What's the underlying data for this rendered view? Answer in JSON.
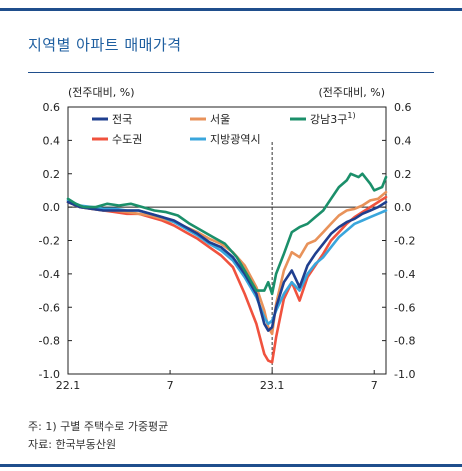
{
  "header": {
    "title": "지역별 아파트 매매가격"
  },
  "chart_data": {
    "type": "line",
    "left_unit": "(전주대비, %)",
    "right_unit": "(전주대비, %)",
    "ylim": [
      -1.0,
      0.6
    ],
    "y_ticks": [
      0.6,
      0.4,
      0.2,
      0.0,
      -0.2,
      -0.4,
      -0.6,
      -0.8,
      -1.0
    ],
    "y_tick_labels_left": [
      "0.6",
      "0.4",
      "0.2",
      "0.0",
      "-0.2",
      "-0.4",
      "-0.6",
      "-0.8",
      "-1.0"
    ],
    "y_tick_labels_right": [
      "0.6",
      "0.4",
      "0.2",
      "0.0",
      "-0.2",
      "-0.4",
      "-0.6",
      "-0.8",
      "-1.0"
    ],
    "x_ticks": [
      {
        "week": 0,
        "label": "22.1"
      },
      {
        "week": 26,
        "label": "7"
      },
      {
        "week": 52,
        "label": "23.1"
      },
      {
        "week": 78,
        "label": "7"
      }
    ],
    "x_range": [
      0,
      81
    ],
    "reference_line_week": 52,
    "zero_line": true,
    "legend_position": "top",
    "series": [
      {
        "name": "전국",
        "color": "#1f3f8f",
        "points": [
          [
            0,
            0.03
          ],
          [
            3,
            0.0
          ],
          [
            6,
            -0.01
          ],
          [
            9,
            -0.02
          ],
          [
            12,
            -0.02
          ],
          [
            15,
            -0.02
          ],
          [
            18,
            -0.02
          ],
          [
            21,
            -0.04
          ],
          [
            24,
            -0.06
          ],
          [
            27,
            -0.08
          ],
          [
            30,
            -0.12
          ],
          [
            33,
            -0.16
          ],
          [
            36,
            -0.21
          ],
          [
            39,
            -0.24
          ],
          [
            42,
            -0.3
          ],
          [
            45,
            -0.4
          ],
          [
            48,
            -0.52
          ],
          [
            50,
            -0.7
          ],
          [
            51,
            -0.74
          ],
          [
            52,
            -0.72
          ],
          [
            53,
            -0.6
          ],
          [
            55,
            -0.45
          ],
          [
            57,
            -0.38
          ],
          [
            59,
            -0.48
          ],
          [
            61,
            -0.35
          ],
          [
            63,
            -0.28
          ],
          [
            65,
            -0.22
          ],
          [
            67,
            -0.16
          ],
          [
            69,
            -0.12
          ],
          [
            71,
            -0.09
          ],
          [
            73,
            -0.07
          ],
          [
            75,
            -0.04
          ],
          [
            77,
            -0.02
          ],
          [
            79,
            0.0
          ],
          [
            81,
            0.03
          ]
        ]
      },
      {
        "name": "서울",
        "color": "#e8925a",
        "points": [
          [
            0,
            0.03
          ],
          [
            3,
            0.0
          ],
          [
            6,
            -0.01
          ],
          [
            9,
            -0.02
          ],
          [
            12,
            -0.02
          ],
          [
            15,
            -0.03
          ],
          [
            18,
            -0.04
          ],
          [
            21,
            -0.05
          ],
          [
            24,
            -0.07
          ],
          [
            27,
            -0.09
          ],
          [
            30,
            -0.12
          ],
          [
            33,
            -0.15
          ],
          [
            36,
            -0.19
          ],
          [
            39,
            -0.22
          ],
          [
            42,
            -0.27
          ],
          [
            45,
            -0.35
          ],
          [
            48,
            -0.48
          ],
          [
            50,
            -0.62
          ],
          [
            51,
            -0.72
          ],
          [
            52,
            -0.76
          ],
          [
            53,
            -0.58
          ],
          [
            55,
            -0.38
          ],
          [
            57,
            -0.27
          ],
          [
            59,
            -0.3
          ],
          [
            61,
            -0.22
          ],
          [
            63,
            -0.2
          ],
          [
            65,
            -0.15
          ],
          [
            67,
            -0.1
          ],
          [
            69,
            -0.05
          ],
          [
            71,
            -0.02
          ],
          [
            73,
            -0.01
          ],
          [
            75,
            0.01
          ],
          [
            77,
            0.04
          ],
          [
            79,
            0.05
          ],
          [
            81,
            0.09
          ]
        ]
      },
      {
        "name": "강남3구",
        "color": "#1b8f6a",
        "superscript": "1)",
        "points": [
          [
            0,
            0.05
          ],
          [
            2,
            0.02
          ],
          [
            4,
            0.0
          ],
          [
            7,
            0.0
          ],
          [
            10,
            0.02
          ],
          [
            13,
            0.01
          ],
          [
            16,
            0.02
          ],
          [
            19,
            0.0
          ],
          [
            22,
            -0.02
          ],
          [
            25,
            -0.03
          ],
          [
            28,
            -0.05
          ],
          [
            31,
            -0.1
          ],
          [
            34,
            -0.14
          ],
          [
            37,
            -0.18
          ],
          [
            40,
            -0.22
          ],
          [
            43,
            -0.3
          ],
          [
            45,
            -0.38
          ],
          [
            47,
            -0.46
          ],
          [
            48,
            -0.5
          ],
          [
            50,
            -0.5
          ],
          [
            51,
            -0.45
          ],
          [
            52,
            -0.52
          ],
          [
            53,
            -0.4
          ],
          [
            55,
            -0.28
          ],
          [
            57,
            -0.15
          ],
          [
            59,
            -0.12
          ],
          [
            61,
            -0.1
          ],
          [
            63,
            -0.06
          ],
          [
            65,
            -0.02
          ],
          [
            67,
            0.05
          ],
          [
            69,
            0.12
          ],
          [
            71,
            0.16
          ],
          [
            72,
            0.2
          ],
          [
            74,
            0.18
          ],
          [
            75,
            0.2
          ],
          [
            77,
            0.14
          ],
          [
            78,
            0.1
          ],
          [
            80,
            0.12
          ],
          [
            81,
            0.18
          ]
        ]
      },
      {
        "name": "수도권",
        "color": "#f0523e",
        "points": [
          [
            0,
            0.03
          ],
          [
            3,
            0.0
          ],
          [
            6,
            -0.01
          ],
          [
            9,
            -0.02
          ],
          [
            12,
            -0.03
          ],
          [
            15,
            -0.04
          ],
          [
            18,
            -0.04
          ],
          [
            21,
            -0.06
          ],
          [
            24,
            -0.08
          ],
          [
            27,
            -0.11
          ],
          [
            30,
            -0.15
          ],
          [
            33,
            -0.19
          ],
          [
            36,
            -0.24
          ],
          [
            39,
            -0.29
          ],
          [
            42,
            -0.36
          ],
          [
            45,
            -0.52
          ],
          [
            48,
            -0.7
          ],
          [
            50,
            -0.88
          ],
          [
            51,
            -0.92
          ],
          [
            52,
            -0.93
          ],
          [
            53,
            -0.78
          ],
          [
            55,
            -0.55
          ],
          [
            57,
            -0.45
          ],
          [
            59,
            -0.56
          ],
          [
            61,
            -0.42
          ],
          [
            63,
            -0.35
          ],
          [
            65,
            -0.28
          ],
          [
            67,
            -0.2
          ],
          [
            69,
            -0.15
          ],
          [
            71,
            -0.1
          ],
          [
            73,
            -0.06
          ],
          [
            75,
            -0.03
          ],
          [
            77,
            0.0
          ],
          [
            79,
            0.03
          ],
          [
            81,
            0.06
          ]
        ]
      },
      {
        "name": "지방광역시",
        "color": "#3aa6dc",
        "points": [
          [
            0,
            0.04
          ],
          [
            3,
            0.01
          ],
          [
            6,
            0.0
          ],
          [
            9,
            -0.01
          ],
          [
            12,
            -0.01
          ],
          [
            15,
            -0.02
          ],
          [
            18,
            -0.02
          ],
          [
            21,
            -0.04
          ],
          [
            24,
            -0.06
          ],
          [
            27,
            -0.09
          ],
          [
            30,
            -0.13
          ],
          [
            33,
            -0.17
          ],
          [
            36,
            -0.22
          ],
          [
            39,
            -0.26
          ],
          [
            42,
            -0.32
          ],
          [
            45,
            -0.42
          ],
          [
            48,
            -0.54
          ],
          [
            50,
            -0.66
          ],
          [
            51,
            -0.7
          ],
          [
            52,
            -0.68
          ],
          [
            53,
            -0.62
          ],
          [
            55,
            -0.52
          ],
          [
            57,
            -0.45
          ],
          [
            59,
            -0.5
          ],
          [
            61,
            -0.4
          ],
          [
            63,
            -0.34
          ],
          [
            65,
            -0.3
          ],
          [
            67,
            -0.24
          ],
          [
            69,
            -0.18
          ],
          [
            71,
            -0.14
          ],
          [
            73,
            -0.1
          ],
          [
            75,
            -0.08
          ],
          [
            77,
            -0.06
          ],
          [
            79,
            -0.04
          ],
          [
            81,
            -0.02
          ]
        ]
      }
    ]
  },
  "footnote": {
    "note": "주: 1) 구별 주택수로 가중평균",
    "source": "자료: 한국부동산원"
  }
}
